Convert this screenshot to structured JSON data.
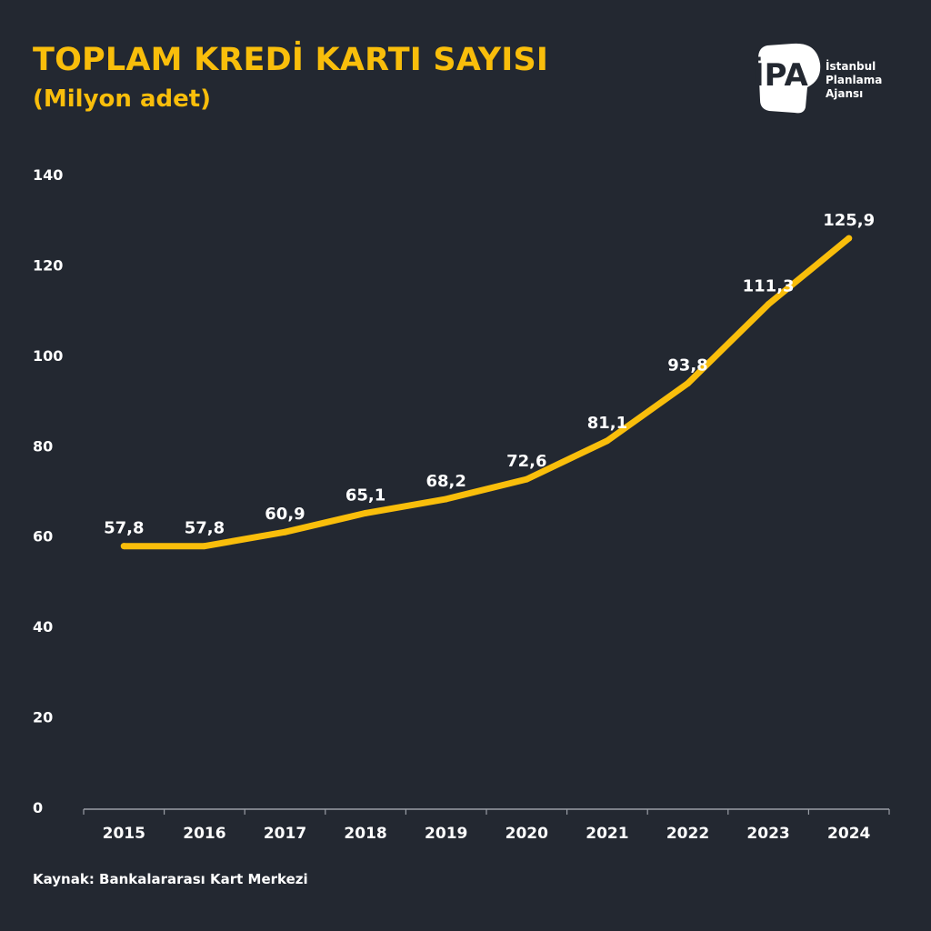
{
  "header": {
    "title": "TOPLAM KREDİ KARTI SAYISI",
    "subtitle": "(Milyon adet)"
  },
  "logo": {
    "mark": "İPA",
    "lines": [
      "İstanbul",
      "Planlama",
      "Ajansı"
    ]
  },
  "footer": {
    "source": "Kaynak: Bankalararası Kart Merkezi"
  },
  "colors": {
    "background": "#232831",
    "accent": "#F9BE0B",
    "text": "#FFFFFF",
    "axis": "#9A9EA6"
  },
  "chart_data": {
    "type": "line",
    "title": "TOPLAM KREDİ KARTI SAYISI",
    "subtitle": "(Milyon adet)",
    "categories": [
      "2015",
      "2016",
      "2017",
      "2018",
      "2019",
      "2020",
      "2021",
      "2022",
      "2023",
      "2024"
    ],
    "values": [
      57.8,
      57.8,
      60.9,
      65.1,
      68.2,
      72.6,
      81.1,
      93.8,
      111.3,
      125.9
    ],
    "data_labels": [
      "57,8",
      "57,8",
      "60,9",
      "65,1",
      "68,2",
      "72,6",
      "81,1",
      "93,8",
      "111,3",
      "125,9"
    ],
    "ylim": [
      0,
      140
    ],
    "yticks": [
      0,
      20,
      40,
      60,
      80,
      100,
      120,
      140
    ],
    "grid": false,
    "legend": "none"
  }
}
